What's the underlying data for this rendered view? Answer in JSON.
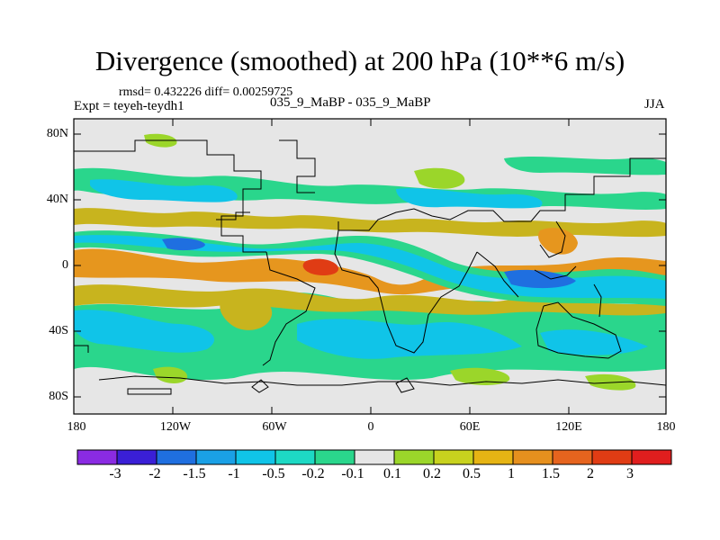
{
  "title": "Divergence (smoothed) at 200 hPa (10**6 m/s)",
  "stats": "rmsd= 0.432226 diff= 0.00259725",
  "expt": "Expt = teyeh-teydh1",
  "expt_names": "035_9_MaBP - 035_9_MaBP",
  "season": "JJA",
  "lat_labels": [
    "80N",
    "40N",
    "0",
    "40S",
    "80S"
  ],
  "lon_labels": [
    "180",
    "120W",
    "60W",
    "0",
    "60E",
    "120E",
    "180"
  ],
  "colorbar": {
    "labels": [
      "-3",
      "-2",
      "-1.5",
      "-1",
      "-0.5",
      "-0.2",
      "-0.1",
      "0.1",
      "0.2",
      "0.5",
      "1",
      "1.5",
      "2",
      "3"
    ],
    "colors": [
      "#8a2be2",
      "#3a1fd6",
      "#1f6fe0",
      "#1aa0e6",
      "#10c4e8",
      "#1dd9c4",
      "#2ad68c",
      "#e6e6e6",
      "#9bd62a",
      "#c8d21e",
      "#e6b414",
      "#e6901e",
      "#e6641e",
      "#e03c14",
      "#e01e1e"
    ]
  },
  "map_colors": {
    "neutral": "#e6e6e6",
    "weak_pos": "#9bd62a",
    "pos": "#c8b41e",
    "strong_pos": "#e6961e",
    "peak_pos": "#e03c14",
    "weak_neg": "#2ad68c",
    "neg": "#10c4e8",
    "strong_neg": "#1f6fe0",
    "peak_neg": "#3a1fd6",
    "coast": "#000000"
  }
}
